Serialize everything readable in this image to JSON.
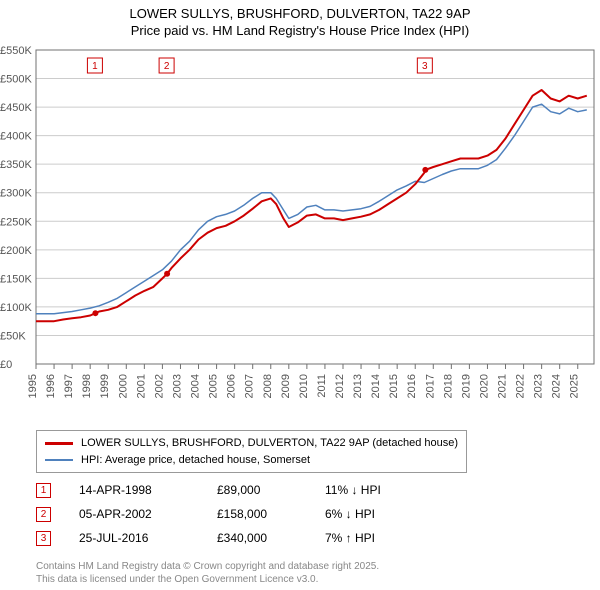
{
  "title_line1": "LOWER SULLYS, BRUSHFORD, DULVERTON, TA22 9AP",
  "title_line2": "Price paid vs. HM Land Registry's House Price Index (HPI)",
  "chart": {
    "type": "line",
    "background_color": "#ffffff",
    "plot_border_color": "#707070",
    "grid_color": "#cccccc",
    "xlim": [
      1995,
      2025.9
    ],
    "ylim": [
      0,
      550000
    ],
    "ytick_step": 50000,
    "yticks": [
      "£0",
      "£50K",
      "£100K",
      "£150K",
      "£200K",
      "£250K",
      "£300K",
      "£350K",
      "£400K",
      "£450K",
      "£500K",
      "£550K"
    ],
    "xticks": [
      1995,
      1996,
      1997,
      1998,
      1999,
      2000,
      2001,
      2002,
      2003,
      2004,
      2005,
      2006,
      2007,
      2008,
      2009,
      2010,
      2011,
      2012,
      2013,
      2014,
      2015,
      2016,
      2017,
      2018,
      2019,
      2020,
      2021,
      2022,
      2023,
      2024,
      2025
    ],
    "axis_label_fontsize": 11,
    "axis_label_color": "#555555",
    "series": [
      {
        "name": "red",
        "label": "LOWER SULLYS, BRUSHFORD, DULVERTON, TA22 9AP (detached house)",
        "color": "#cc0000",
        "line_width": 2,
        "data": [
          [
            1995.0,
            75000
          ],
          [
            1995.5,
            75000
          ],
          [
            1996.0,
            75000
          ],
          [
            1996.5,
            78000
          ],
          [
            1997.0,
            80000
          ],
          [
            1997.5,
            82000
          ],
          [
            1998.0,
            85000
          ],
          [
            1998.29,
            89000
          ],
          [
            1998.5,
            92000
          ],
          [
            1999.0,
            95000
          ],
          [
            1999.5,
            100000
          ],
          [
            2000.0,
            110000
          ],
          [
            2000.5,
            120000
          ],
          [
            2001.0,
            128000
          ],
          [
            2001.5,
            135000
          ],
          [
            2002.0,
            150000
          ],
          [
            2002.26,
            158000
          ],
          [
            2002.5,
            168000
          ],
          [
            2003.0,
            185000
          ],
          [
            2003.5,
            200000
          ],
          [
            2004.0,
            218000
          ],
          [
            2004.5,
            230000
          ],
          [
            2005.0,
            238000
          ],
          [
            2005.5,
            242000
          ],
          [
            2006.0,
            250000
          ],
          [
            2006.5,
            260000
          ],
          [
            2007.0,
            272000
          ],
          [
            2007.5,
            285000
          ],
          [
            2008.0,
            290000
          ],
          [
            2008.3,
            280000
          ],
          [
            2008.7,
            255000
          ],
          [
            2009.0,
            240000
          ],
          [
            2009.5,
            248000
          ],
          [
            2010.0,
            260000
          ],
          [
            2010.5,
            262000
          ],
          [
            2011.0,
            255000
          ],
          [
            2011.5,
            255000
          ],
          [
            2012.0,
            252000
          ],
          [
            2012.5,
            255000
          ],
          [
            2013.0,
            258000
          ],
          [
            2013.5,
            262000
          ],
          [
            2014.0,
            270000
          ],
          [
            2014.5,
            280000
          ],
          [
            2015.0,
            290000
          ],
          [
            2015.5,
            300000
          ],
          [
            2016.0,
            315000
          ],
          [
            2016.5,
            335000
          ],
          [
            2016.56,
            340000
          ],
          [
            2017.0,
            345000
          ],
          [
            2017.5,
            350000
          ],
          [
            2018.0,
            355000
          ],
          [
            2018.5,
            360000
          ],
          [
            2019.0,
            360000
          ],
          [
            2019.5,
            360000
          ],
          [
            2020.0,
            365000
          ],
          [
            2020.5,
            375000
          ],
          [
            2021.0,
            395000
          ],
          [
            2021.5,
            420000
          ],
          [
            2022.0,
            445000
          ],
          [
            2022.5,
            470000
          ],
          [
            2023.0,
            480000
          ],
          [
            2023.5,
            465000
          ],
          [
            2024.0,
            460000
          ],
          [
            2024.5,
            470000
          ],
          [
            2025.0,
            465000
          ],
          [
            2025.5,
            470000
          ]
        ]
      },
      {
        "name": "blue",
        "label": "HPI: Average price, detached house, Somerset",
        "color": "#4f81bd",
        "line_width": 1.5,
        "data": [
          [
            1995.0,
            88000
          ],
          [
            1995.5,
            88000
          ],
          [
            1996.0,
            88000
          ],
          [
            1996.5,
            90000
          ],
          [
            1997.0,
            92000
          ],
          [
            1997.5,
            95000
          ],
          [
            1998.0,
            98000
          ],
          [
            1998.5,
            102000
          ],
          [
            1999.0,
            108000
          ],
          [
            1999.5,
            115000
          ],
          [
            2000.0,
            125000
          ],
          [
            2000.5,
            135000
          ],
          [
            2001.0,
            145000
          ],
          [
            2001.5,
            155000
          ],
          [
            2002.0,
            165000
          ],
          [
            2002.5,
            180000
          ],
          [
            2003.0,
            200000
          ],
          [
            2003.5,
            215000
          ],
          [
            2004.0,
            235000
          ],
          [
            2004.5,
            250000
          ],
          [
            2005.0,
            258000
          ],
          [
            2005.5,
            262000
          ],
          [
            2006.0,
            268000
          ],
          [
            2006.5,
            278000
          ],
          [
            2007.0,
            290000
          ],
          [
            2007.5,
            300000
          ],
          [
            2008.0,
            300000
          ],
          [
            2008.3,
            290000
          ],
          [
            2008.7,
            270000
          ],
          [
            2009.0,
            255000
          ],
          [
            2009.5,
            262000
          ],
          [
            2010.0,
            275000
          ],
          [
            2010.5,
            278000
          ],
          [
            2011.0,
            270000
          ],
          [
            2011.5,
            270000
          ],
          [
            2012.0,
            268000
          ],
          [
            2012.5,
            270000
          ],
          [
            2013.0,
            272000
          ],
          [
            2013.5,
            276000
          ],
          [
            2014.0,
            285000
          ],
          [
            2014.5,
            295000
          ],
          [
            2015.0,
            305000
          ],
          [
            2015.5,
            312000
          ],
          [
            2016.0,
            320000
          ],
          [
            2016.5,
            318000
          ],
          [
            2017.0,
            325000
          ],
          [
            2017.5,
            332000
          ],
          [
            2018.0,
            338000
          ],
          [
            2018.5,
            342000
          ],
          [
            2019.0,
            342000
          ],
          [
            2019.5,
            342000
          ],
          [
            2020.0,
            348000
          ],
          [
            2020.5,
            358000
          ],
          [
            2021.0,
            378000
          ],
          [
            2021.5,
            400000
          ],
          [
            2022.0,
            425000
          ],
          [
            2022.5,
            450000
          ],
          [
            2023.0,
            455000
          ],
          [
            2023.5,
            442000
          ],
          [
            2024.0,
            438000
          ],
          [
            2024.5,
            448000
          ],
          [
            2025.0,
            442000
          ],
          [
            2025.5,
            445000
          ]
        ]
      }
    ],
    "markers": [
      {
        "id": "1",
        "x": 1998.29,
        "y": 89000,
        "color": "#cc0000"
      },
      {
        "id": "2",
        "x": 2002.26,
        "y": 158000,
        "color": "#cc0000"
      },
      {
        "id": "3",
        "x": 2016.56,
        "y": 340000,
        "color": "#cc0000"
      }
    ]
  },
  "legend": {
    "border_color": "#999999",
    "items": [
      {
        "color": "#cc0000",
        "label": "LOWER SULLYS, BRUSHFORD, DULVERTON, TA22 9AP (detached house)"
      },
      {
        "color": "#4f81bd",
        "label": "HPI: Average price, detached house, Somerset"
      }
    ]
  },
  "marker_rows": [
    {
      "id": "1",
      "color": "#cc0000",
      "date": "14-APR-1998",
      "price": "£89,000",
      "delta": "11% ↓ HPI"
    },
    {
      "id": "2",
      "color": "#cc0000",
      "date": "05-APR-2002",
      "price": "£158,000",
      "delta": "6% ↓ HPI"
    },
    {
      "id": "3",
      "color": "#cc0000",
      "date": "25-JUL-2016",
      "price": "£340,000",
      "delta": "7% ↑ HPI"
    }
  ],
  "footer_line1": "Contains HM Land Registry data © Crown copyright and database right 2025.",
  "footer_line2": "This data is licensed under the Open Government Licence v3.0."
}
